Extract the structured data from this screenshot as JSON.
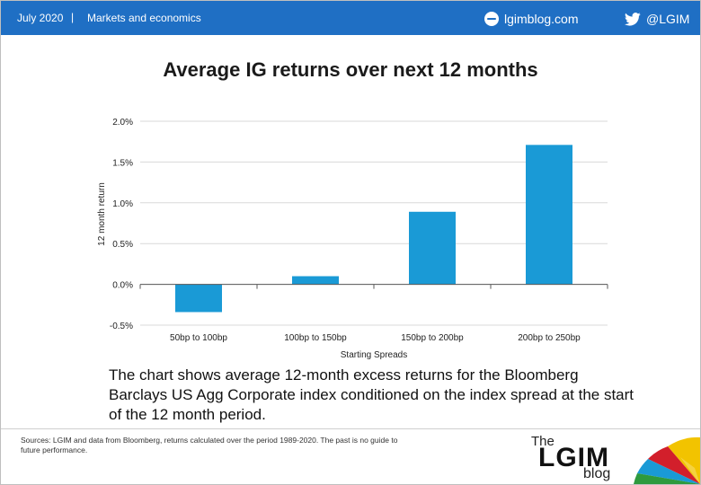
{
  "header": {
    "date": "July 2020",
    "separator": "|",
    "section": "Markets and economics",
    "site": "lgimblog.com",
    "site_icon": "globe-icon",
    "handle": "@LGIM",
    "handle_icon": "twitter-bird-icon",
    "bar_color": "#1f6fc4"
  },
  "chart_data": {
    "type": "bar",
    "title": "Average IG returns over next 12 months",
    "xlabel": "Starting Spreads",
    "ylabel": "12 month return",
    "categories": [
      "50bp to 100bp",
      "100bp to 150bp",
      "150bp to 200bp",
      "200bp to 250bp"
    ],
    "values": [
      -0.34,
      0.1,
      0.89,
      1.71
    ],
    "ylim": [
      -0.5,
      2.0
    ],
    "yticks": [
      -0.5,
      0.0,
      0.5,
      1.0,
      1.5,
      2.0
    ],
    "ytick_labels": [
      "-0.5%",
      "0.0%",
      "0.5%",
      "1.0%",
      "1.5%",
      "2.0%"
    ],
    "grid": true,
    "bar_color": "#1a9ad6"
  },
  "caption": "The chart shows average 12-month excess returns for the Bloomberg Barclays US Agg Corporate index conditioned on the index spread at the start of the 12 month period.",
  "sources": "Sources: LGIM and data from Bloomberg, returns calculated over the period 1989-2020. The past is no guide to future performance.",
  "logo": {
    "the": "The",
    "name": "LGIM",
    "blog": "blog"
  }
}
